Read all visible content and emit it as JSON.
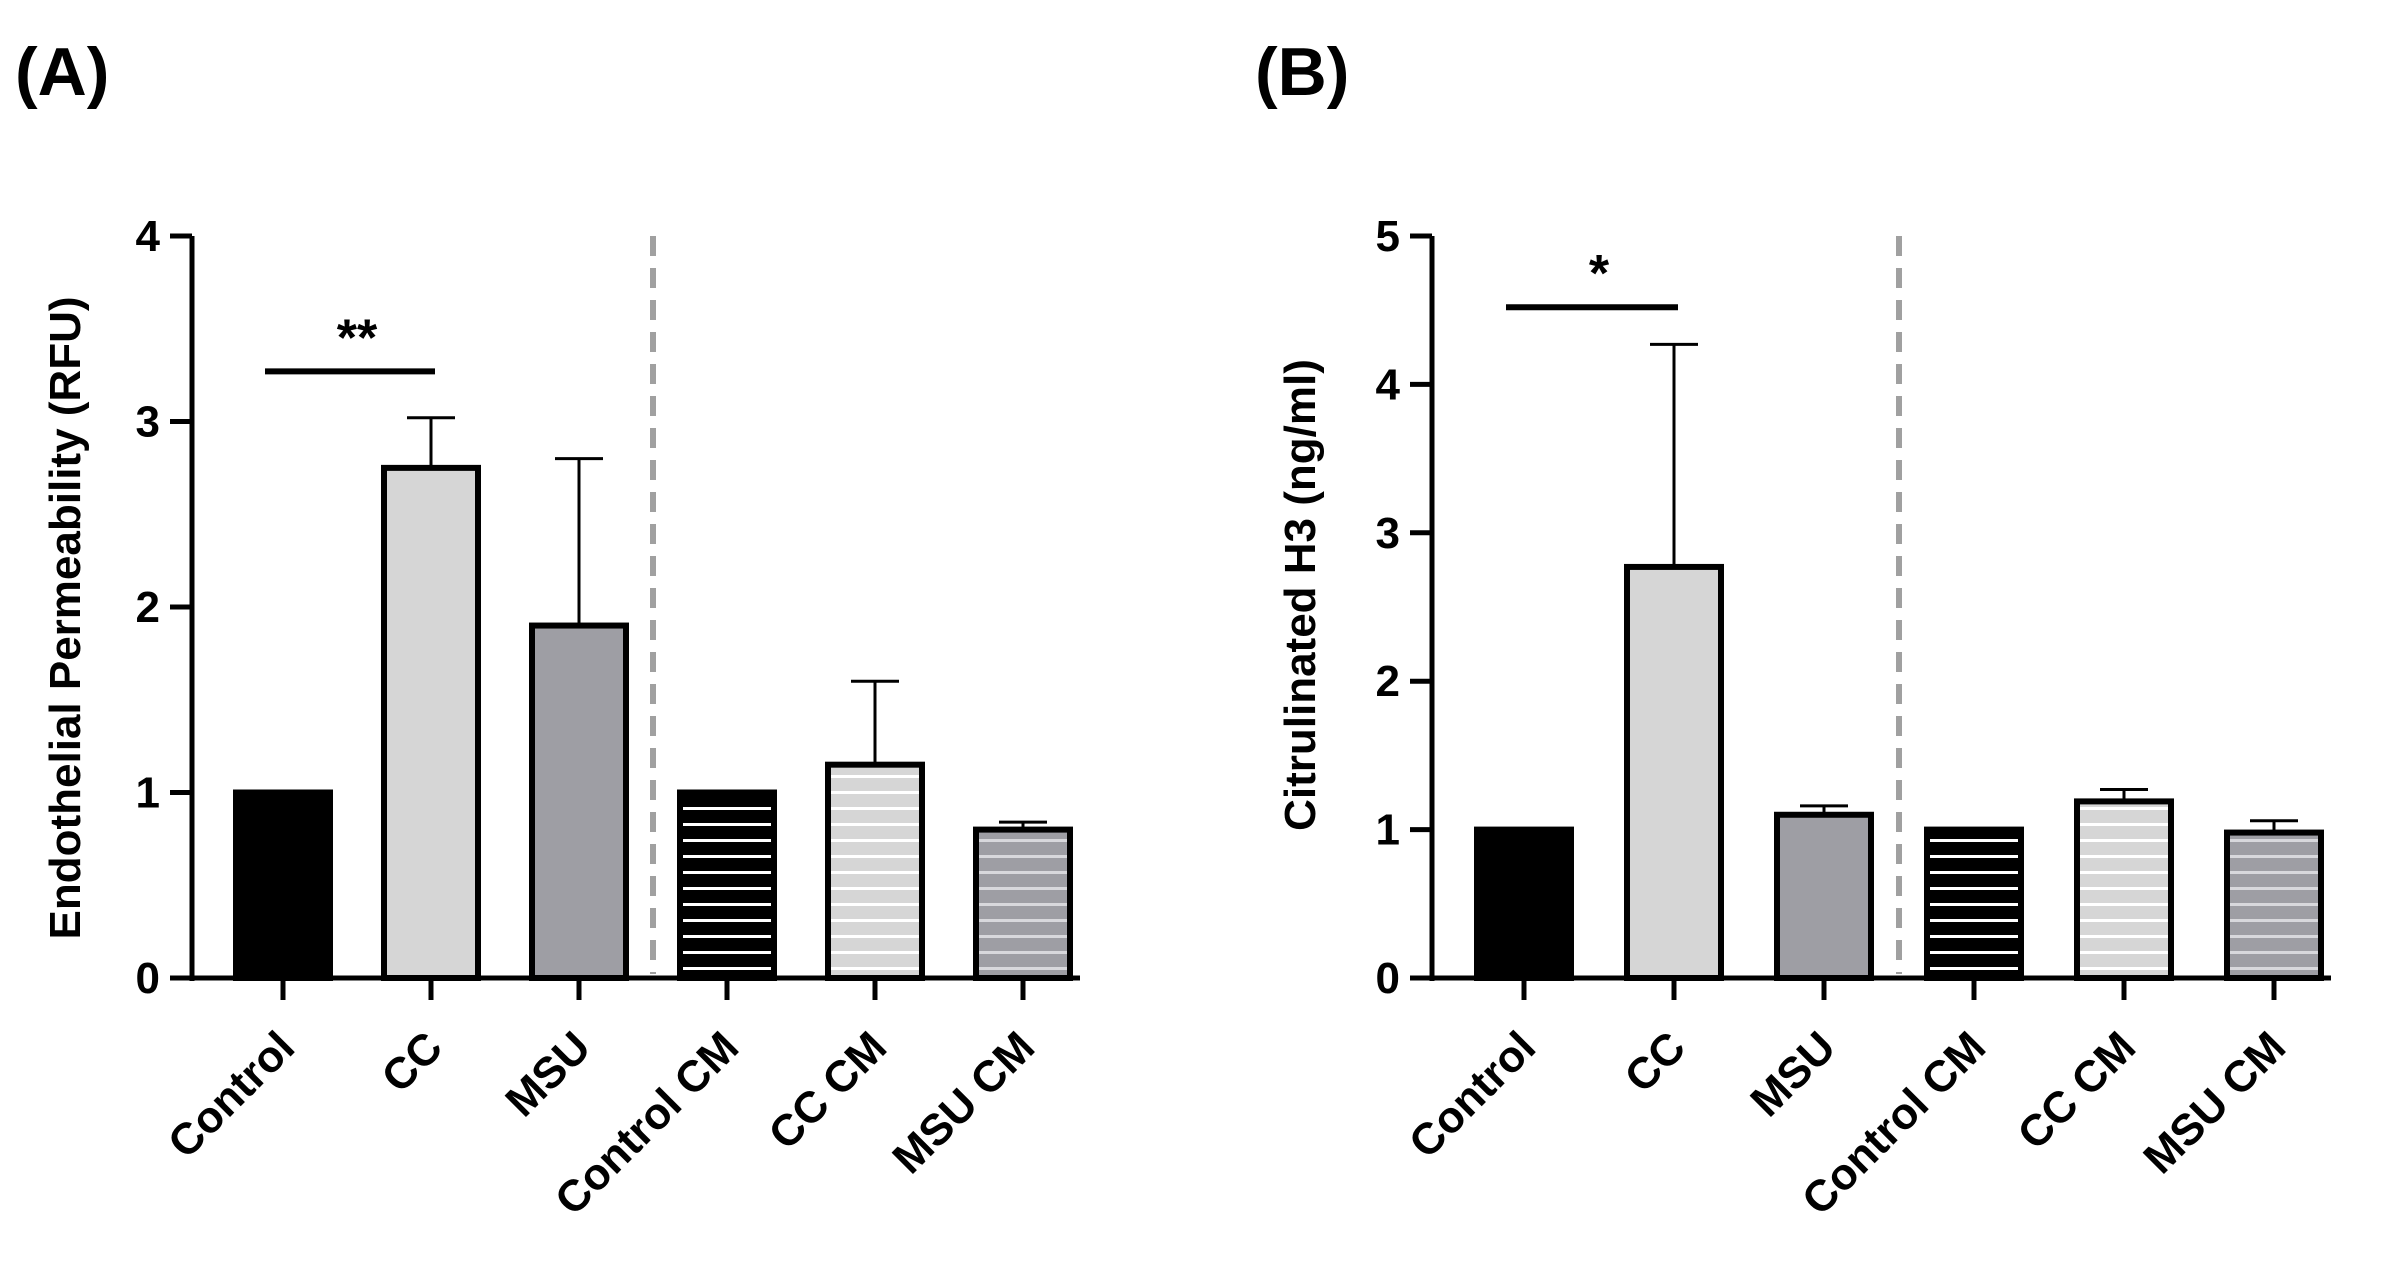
{
  "figure": {
    "panels": [
      {
        "label": "(A)",
        "chart_data": {
          "type": "bar",
          "title": "",
          "xlabel": "",
          "ylabel": "Endothelial Permeability (RFU)",
          "ylim": [
            0,
            4
          ],
          "yticks": [
            0,
            1,
            2,
            3,
            4
          ],
          "categories": [
            "Control",
            "CC",
            "MSU",
            "Control CM",
            "CC CM",
            "MSU CM"
          ],
          "values": [
            1.0,
            2.75,
            1.9,
            1.0,
            1.15,
            0.8
          ],
          "error_upper": [
            0,
            3.02,
            2.8,
            0,
            1.6,
            0.84
          ],
          "patterns": [
            "solid",
            "solid",
            "solid",
            "striped",
            "striped",
            "striped"
          ],
          "fill_colors": [
            "#000000",
            "#d6d6d6",
            "#9e9ea4",
            "#000000",
            "#d6d6d6",
            "#9e9ea4"
          ],
          "significance": [
            {
              "from": "Control",
              "to": "CC",
              "label": "**",
              "y": 3.27
            }
          ],
          "divider_after": "MSU",
          "grid": false
        }
      },
      {
        "label": "(B)",
        "chart_data": {
          "type": "bar",
          "title": "",
          "xlabel": "",
          "ylabel": "Citrulinated H3 (ng/ml)",
          "ylim": [
            0,
            5
          ],
          "yticks": [
            0,
            1,
            2,
            3,
            4,
            5
          ],
          "categories": [
            "Control",
            "CC",
            "MSU",
            "Control CM",
            "CC CM",
            "MSU CM"
          ],
          "values": [
            1.0,
            2.77,
            1.1,
            1.0,
            1.19,
            0.98
          ],
          "error_upper": [
            0,
            4.27,
            1.16,
            0,
            1.27,
            1.06
          ],
          "patterns": [
            "solid",
            "solid",
            "solid",
            "striped",
            "striped",
            "striped"
          ],
          "fill_colors": [
            "#000000",
            "#d6d6d6",
            "#9e9ea4",
            "#000000",
            "#d6d6d6",
            "#9e9ea4"
          ],
          "significance": [
            {
              "from": "Control",
              "to": "CC",
              "label": "*",
              "y": 4.52
            }
          ],
          "divider_after": "MSU",
          "grid": false
        }
      }
    ]
  }
}
